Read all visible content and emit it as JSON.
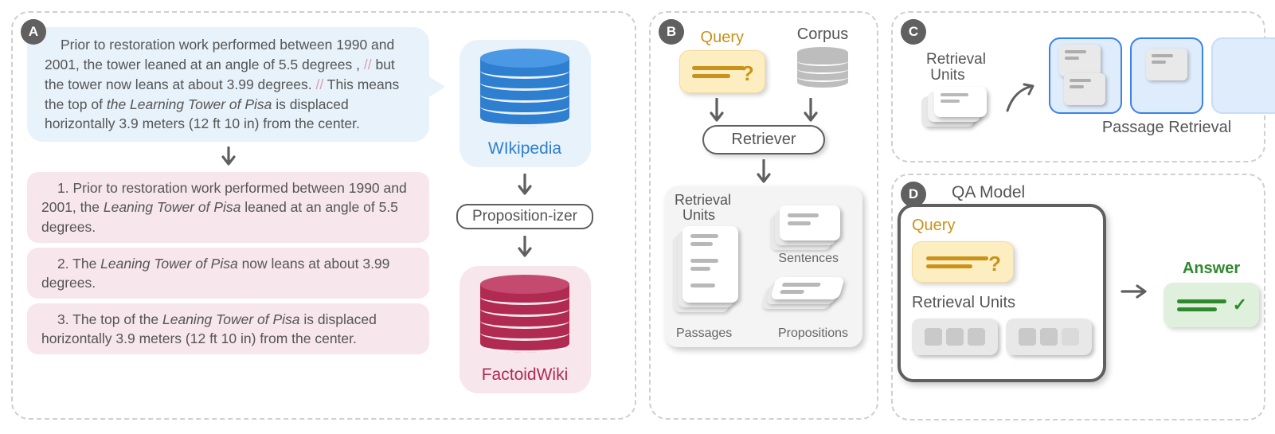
{
  "badges": {
    "a": "A",
    "b": "B",
    "c": "C",
    "d": "D"
  },
  "panelA": {
    "passage_html": "Prior to restoration work performed between 1990 and 2001, the tower leaned at an angle of 5.5 degrees , <span class='sep'>//</span> but the tower now leans at about 3.99 degrees. <span class='sep'>//</span> This means the top of <i>the Learning Tower of Pisa</i> is displaced horizontally 3.9 meters (12 ft 10 in) from the center.",
    "prop1_html": "1. Prior to restoration work performed between 1990 and 2001, the <i>Leaning Tower of Pisa</i> leaned at an angle of 5.5 degrees.",
    "prop2_html": "2. The <i>Leaning Tower of Pisa</i> now leans at about 3.99 degrees.",
    "prop3_html": "3. The top of the <i>Leaning Tower of Pisa</i> is displaced horizontally 3.9 meters (12 ft 10 in) from the center.",
    "wikipedia_label": "WIkipedia",
    "propositionizer_label": "Proposition-izer",
    "factoidwiki_label": "FactoidWiki",
    "colors": {
      "wiki_cyl": "#2f7fd0",
      "wiki_cyl_top": "#4b99e4",
      "wiki_text": "#2f7fd0",
      "factoid_cyl": "#b12a52",
      "factoid_cyl_top": "#c54a70",
      "factoid_text": "#b12a52",
      "passage_bg": "#e7f2fa",
      "prop_bg": "#f7e6eb"
    }
  },
  "panelB": {
    "query_label": "Query",
    "corpus_label": "Corpus",
    "retriever_label": "Retriever",
    "units_title_l1": "Retrieval",
    "units_title_l2": "Units",
    "passages_label": "Passages",
    "sentences_label": "Sentences",
    "propositions_label": "Propositions",
    "query_color": "#c9921a"
  },
  "panelC": {
    "ru_title_l1": "Retrieval",
    "ru_title_l2": "Units",
    "passage_retrieval_label": "Passage Retrieval",
    "card_border": "#3b82e6",
    "card_fill": "#dfecfb"
  },
  "panelD": {
    "qa_label": "QA Model",
    "query_label": "Query",
    "ru_label": "Retrieval Units",
    "answer_label": "Answer",
    "answer_color": "#2f8a2f"
  }
}
